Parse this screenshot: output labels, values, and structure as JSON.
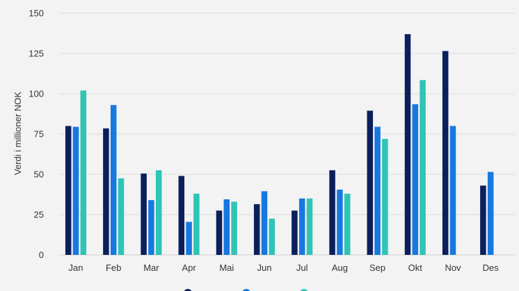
{
  "chart_data": {
    "type": "bar",
    "ylabel": "Verdi i millioner NOK",
    "ylim": [
      0,
      150
    ],
    "yticks": [
      0,
      25,
      50,
      75,
      100,
      125,
      150
    ],
    "grid": true,
    "legend_position": "bottom",
    "categories": [
      "Jan",
      "Feb",
      "Mar",
      "Apr",
      "Mai",
      "Jun",
      "Jul",
      "Aug",
      "Sep",
      "Okt",
      "Nov",
      "Des"
    ],
    "series": [
      {
        "name": "",
        "color": "#0b1f5c",
        "values": [
          80,
          78.5,
          50.5,
          49,
          27.5,
          31.5,
          27.5,
          52.5,
          89.5,
          137,
          126.5,
          43
        ]
      },
      {
        "name": "",
        "color": "#1778e0",
        "values": [
          79.5,
          93,
          34,
          20.5,
          34.5,
          39.5,
          35,
          40.5,
          79.5,
          93.5,
          80,
          51.5
        ]
      },
      {
        "name": "",
        "color": "#2ec4b6",
        "values": [
          102,
          47.5,
          52.5,
          38,
          33,
          22.5,
          35,
          38,
          72,
          108.5,
          null,
          null
        ]
      }
    ]
  }
}
